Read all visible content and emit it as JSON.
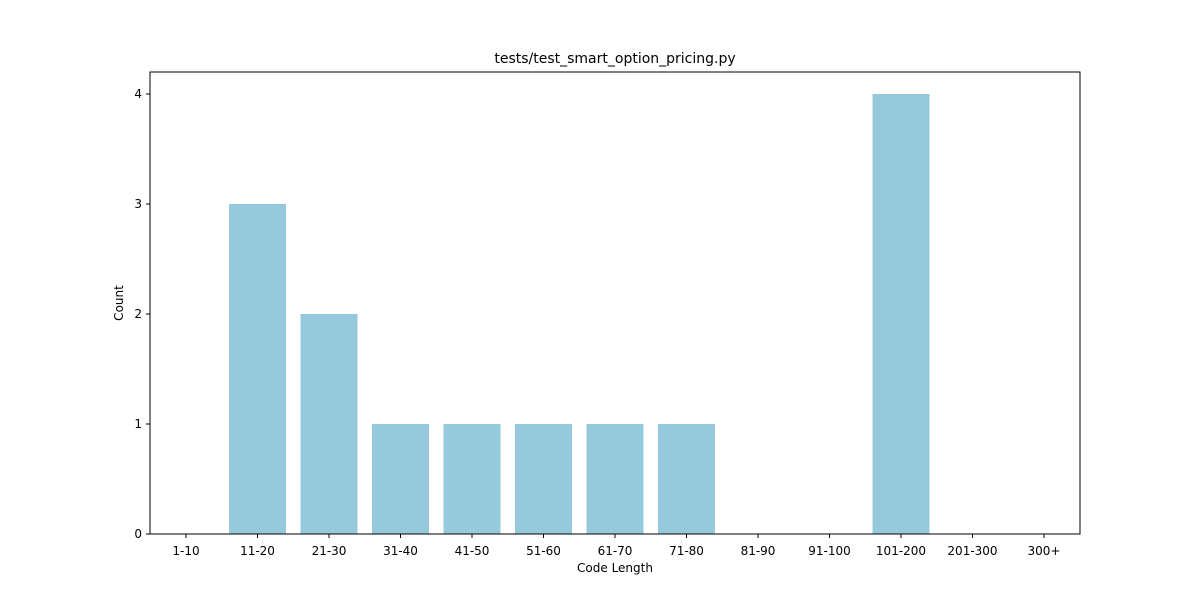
{
  "chart_data": {
    "type": "bar",
    "title": "tests/test_smart_option_pricing.py",
    "xlabel": "Code Length",
    "ylabel": "Count",
    "categories": [
      "1-10",
      "11-20",
      "21-30",
      "31-40",
      "41-50",
      "51-60",
      "61-70",
      "71-80",
      "81-90",
      "91-100",
      "101-200",
      "201-300",
      "300+"
    ],
    "values": [
      0,
      3,
      2,
      1,
      1,
      1,
      1,
      1,
      0,
      0,
      4,
      0,
      0
    ],
    "ylim": [
      0,
      4.2
    ],
    "yticks": [
      0,
      1,
      2,
      3,
      4
    ],
    "bar_color": "#96c9dc",
    "grid": false,
    "legend": "none"
  }
}
